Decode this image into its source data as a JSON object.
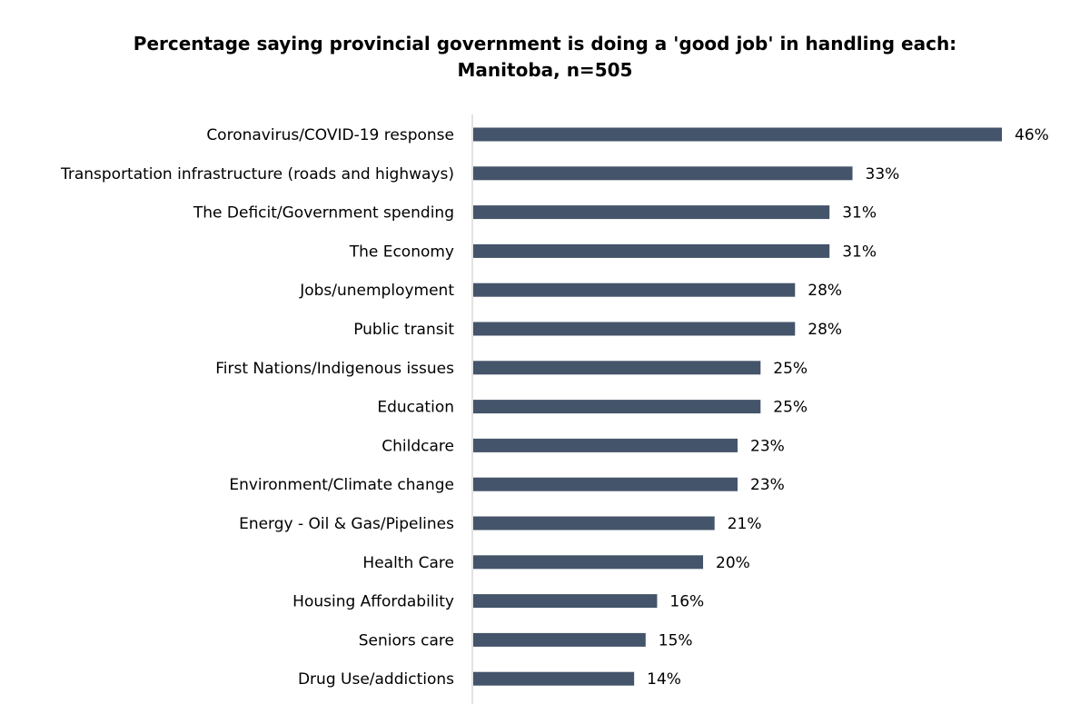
{
  "chart_data": {
    "type": "bar",
    "orientation": "horizontal",
    "title_lines": [
      "Percentage saying provincial government is doing a 'good job' in handling each:",
      "Manitoba, n=505"
    ],
    "categories": [
      "Coronavirus/COVID-19 response",
      "Transportation infrastructure (roads and highways)",
      "The Deficit/Government spending",
      "The Economy",
      "Jobs/unemployment",
      "Public transit",
      "First Nations/Indigenous issues",
      "Education",
      "Childcare",
      "Environment/Climate change",
      "Energy - Oil & Gas/Pipelines",
      "Health Care",
      "Housing Affordability",
      "Seniors care",
      "Drug Use/addictions"
    ],
    "values": [
      46,
      33,
      31,
      31,
      28,
      28,
      25,
      25,
      23,
      23,
      21,
      20,
      16,
      15,
      14
    ],
    "value_labels": [
      "46%",
      "33%",
      "31%",
      "31%",
      "28%",
      "28%",
      "25%",
      "25%",
      "23%",
      "23%",
      "21%",
      "20%",
      "16%",
      "15%",
      "14%"
    ],
    "xlim": [
      0,
      46
    ],
    "unit": "%",
    "grid": false,
    "legend": "none",
    "bar_color": "#44546a",
    "axis_color": "#d9d9d9"
  }
}
